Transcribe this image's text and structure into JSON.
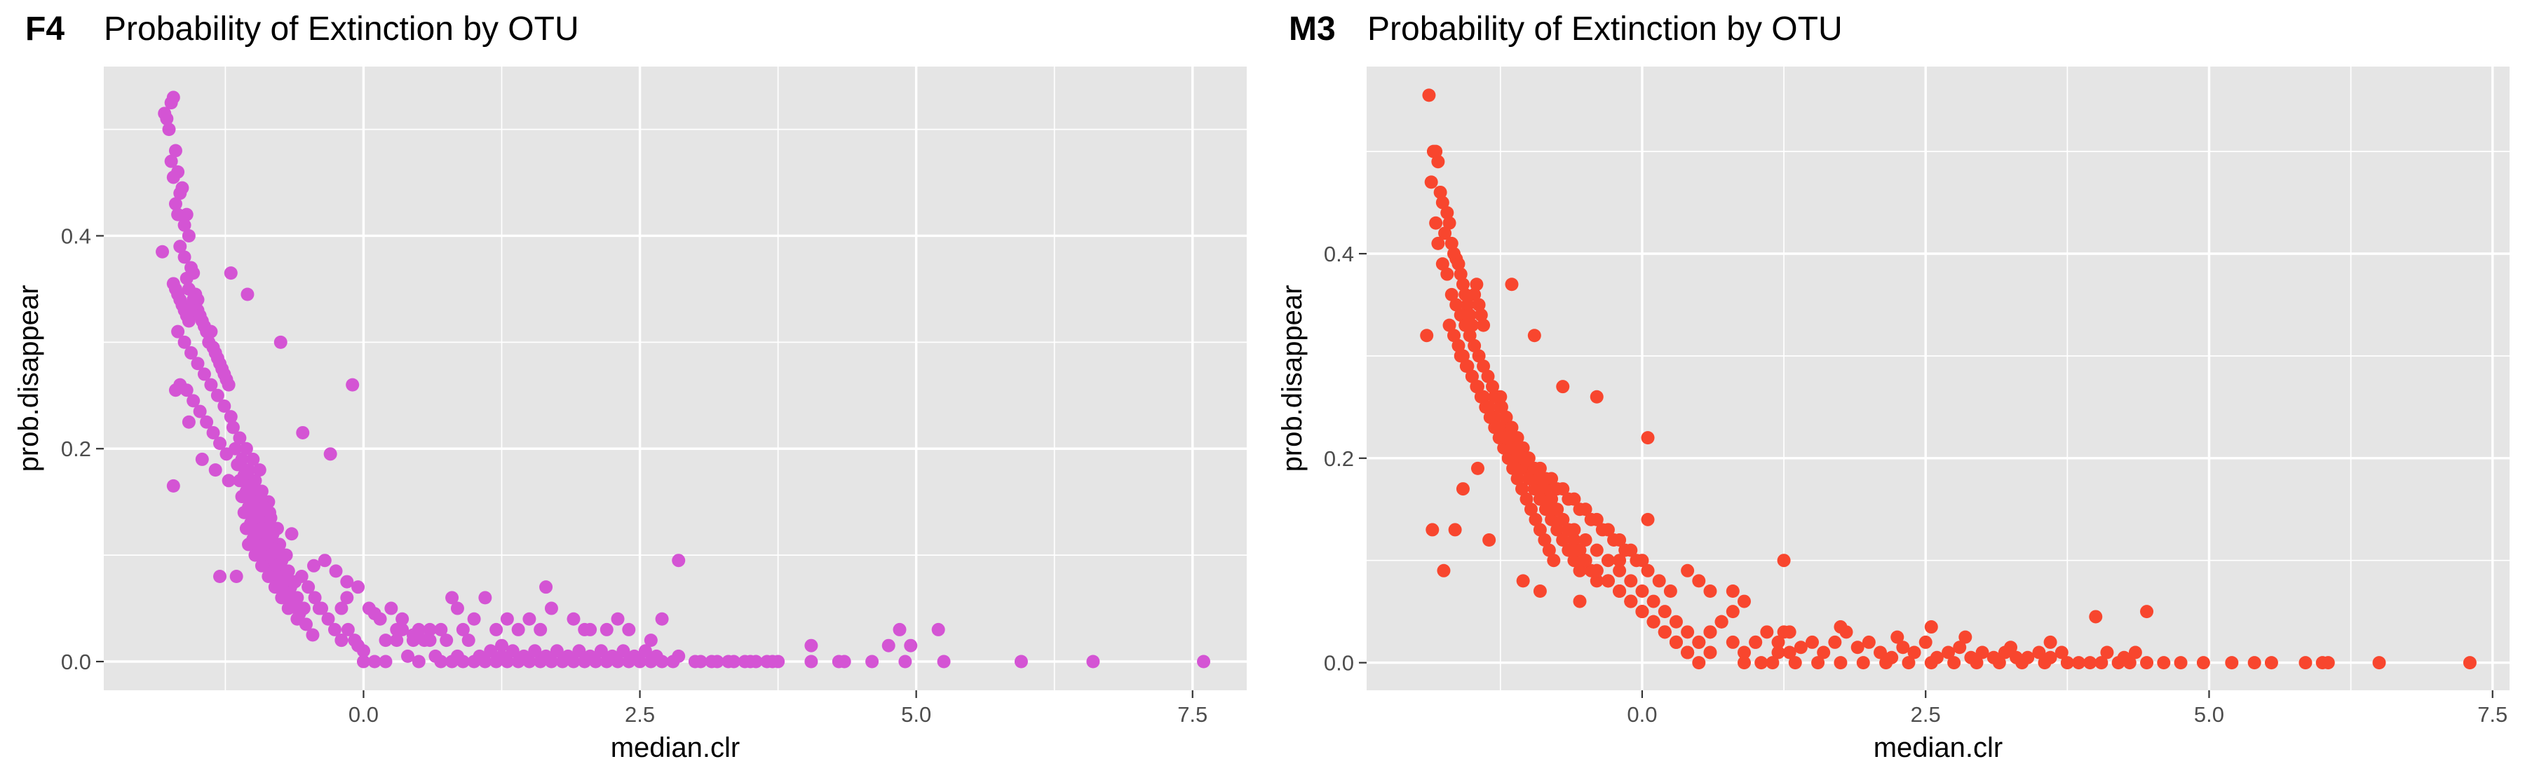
{
  "chart_data": [
    {
      "type": "scatter",
      "tag": "F4",
      "title": "Probability of Extinction by OTU",
      "xlabel": "median.clr",
      "ylabel": "prob.disappear",
      "xlim": [
        -2.35,
        7.99
      ],
      "ylim": [
        -0.027,
        0.559
      ],
      "xticks": [
        0.0,
        2.5,
        5.0,
        7.5
      ],
      "xtick_labels": [
        "0.0",
        "2.5",
        "5.0",
        "7.5"
      ],
      "yticks": [
        0.0,
        0.2,
        0.4
      ],
      "ytick_labels": [
        "0.0",
        "0.2",
        "0.4"
      ],
      "grid": true,
      "point_color": "#D454D4",
      "x": [
        -1.8,
        -1.78,
        -1.74,
        -1.72,
        -1.76,
        -1.7,
        -1.74,
        -1.68,
        -1.72,
        -1.66,
        -1.7,
        -1.64,
        -1.68,
        -1.62,
        -1.6,
        -1.66,
        -1.58,
        -1.62,
        -1.56,
        -1.6,
        -1.54,
        -1.58,
        -1.52,
        -1.5,
        -1.56,
        -1.72,
        -1.7,
        -1.68,
        -1.66,
        -1.64,
        -1.62,
        -1.6,
        -1.58,
        -1.56,
        -1.54,
        -1.52,
        -1.5,
        -1.48,
        -1.46,
        -1.44,
        -1.42,
        -1.4,
        -1.38,
        -1.36,
        -1.34,
        -1.32,
        -1.3,
        -1.28,
        -1.26,
        -1.24,
        -1.22,
        -1.68,
        -1.62,
        -1.56,
        -1.5,
        -1.44,
        -1.38,
        -1.32,
        -1.26,
        -1.2,
        -1.66,
        -1.6,
        -1.54,
        -1.48,
        -1.42,
        -1.36,
        -1.3,
        -1.24,
        -1.82,
        -1.7,
        -1.58,
        -1.46,
        -1.34,
        -1.22,
        -1.72,
        -1.18,
        -1.12,
        -1.06,
        -1.0,
        -0.94,
        -1.16,
        -1.1,
        -1.04,
        -0.98,
        -0.92,
        -0.86,
        -1.14,
        -1.08,
        -1.02,
        -0.96,
        -0.9,
        -0.84,
        -0.78,
        -1.12,
        -1.06,
        -1.0,
        -0.94,
        -0.88,
        -0.82,
        -0.76,
        -0.7,
        -1.1,
        -1.04,
        -0.98,
        -0.92,
        -0.86,
        -0.8,
        -0.74,
        -0.68,
        -0.62,
        -1.08,
        -1.02,
        -0.96,
        -0.9,
        -0.84,
        -0.78,
        -0.72,
        -0.66,
        -0.6,
        -0.54,
        -1.06,
        -1.0,
        -0.94,
        -0.88,
        -0.82,
        -0.76,
        -0.7,
        -0.64,
        -0.58,
        -0.52,
        -0.46,
        -1.04,
        -0.98,
        -0.92,
        -0.86,
        -0.8,
        -0.74,
        -0.68,
        -0.62,
        -0.56,
        -0.5,
        -0.44,
        -0.38,
        -0.32,
        -0.26,
        -0.2,
        -0.14,
        -0.08,
        -1.2,
        -1.05,
        -0.75,
        -0.55,
        -0.3,
        -0.1,
        -1.3,
        -1.15,
        -0.95,
        -0.85,
        -0.65,
        -0.45,
        -0.35,
        -0.25,
        -0.15,
        -0.05,
        -0.6,
        -0.4,
        -0.2,
        -0.15,
        0.05,
        0.1,
        0.15,
        0.25,
        0.35,
        -0.2,
        -0.05,
        0.0,
        0.2,
        0.3,
        0.45,
        0.6,
        0.5,
        0.7,
        0.8,
        0.9,
        1.0,
        1.1,
        1.2,
        1.3,
        1.4,
        1.5,
        1.6,
        1.7,
        1.8,
        1.9,
        2.0,
        2.1,
        2.2,
        2.3,
        2.4,
        2.5,
        2.6,
        2.7,
        0.3,
        0.55,
        0.75,
        0.95,
        1.15,
        1.35,
        1.55,
        1.75,
        1.95,
        2.15,
        2.35,
        2.55,
        0.4,
        0.65,
        0.85,
        1.05,
        1.25,
        1.45,
        1.65,
        1.85,
        2.05,
        2.25,
        2.45,
        2.65,
        2.85,
        0.0,
        0.1,
        0.2,
        0.35,
        0.5,
        0.6,
        0.7,
        0.9,
        1.2,
        1.4,
        1.6,
        2.0,
        2.2,
        2.4,
        2.8,
        1.0,
        1.3,
        1.5,
        1.9,
        2.3,
        2.6,
        0.8,
        1.1,
        1.7,
        2.7,
        1.25,
        2.05,
        0.45,
        0.85,
        1.65,
        2.85,
        3.05,
        3.2,
        3.35,
        3.45,
        3.55,
        3.65,
        3.75,
        3.0,
        3.15,
        3.3,
        3.5,
        3.7,
        4.05,
        4.3,
        4.6,
        4.75,
        4.85,
        4.95,
        4.9,
        5.2,
        5.25,
        4.05,
        4.35,
        5.95,
        6.6,
        7.6
      ],
      "y": [
        0.515,
        0.51,
        0.525,
        0.53,
        0.5,
        0.48,
        0.47,
        0.46,
        0.455,
        0.44,
        0.43,
        0.445,
        0.42,
        0.41,
        0.42,
        0.39,
        0.4,
        0.38,
        0.37,
        0.36,
        0.365,
        0.35,
        0.345,
        0.34,
        0.33,
        0.355,
        0.35,
        0.345,
        0.34,
        0.335,
        0.33,
        0.325,
        0.32,
        0.33,
        0.34,
        0.335,
        0.33,
        0.325,
        0.32,
        0.315,
        0.31,
        0.3,
        0.31,
        0.295,
        0.29,
        0.285,
        0.28,
        0.275,
        0.27,
        0.265,
        0.26,
        0.31,
        0.3,
        0.29,
        0.28,
        0.27,
        0.26,
        0.25,
        0.24,
        0.23,
        0.26,
        0.255,
        0.245,
        0.235,
        0.225,
        0.215,
        0.205,
        0.195,
        0.385,
        0.255,
        0.225,
        0.19,
        0.18,
        0.17,
        0.165,
        0.22,
        0.21,
        0.2,
        0.19,
        0.18,
        0.2,
        0.19,
        0.18,
        0.17,
        0.16,
        0.15,
        0.185,
        0.175,
        0.165,
        0.155,
        0.145,
        0.135,
        0.125,
        0.17,
        0.16,
        0.15,
        0.14,
        0.13,
        0.12,
        0.11,
        0.1,
        0.155,
        0.145,
        0.135,
        0.125,
        0.115,
        0.105,
        0.095,
        0.085,
        0.075,
        0.14,
        0.13,
        0.12,
        0.11,
        0.1,
        0.09,
        0.08,
        0.07,
        0.06,
        0.05,
        0.125,
        0.115,
        0.105,
        0.095,
        0.085,
        0.075,
        0.065,
        0.055,
        0.045,
        0.035,
        0.025,
        0.11,
        0.1,
        0.09,
        0.08,
        0.07,
        0.06,
        0.05,
        0.06,
        0.08,
        0.07,
        0.06,
        0.05,
        0.04,
        0.03,
        0.02,
        0.03,
        0.02,
        0.365,
        0.345,
        0.3,
        0.215,
        0.195,
        0.26,
        0.08,
        0.08,
        0.1,
        0.14,
        0.12,
        0.09,
        0.095,
        0.085,
        0.075,
        0.07,
        0.04,
        0.05,
        0.05,
        0.06,
        0.05,
        0.045,
        0.04,
        0.05,
        0.04,
        0.02,
        0.015,
        0.01,
        0.02,
        0.03,
        0.02,
        0.02,
        0.0,
        0.0,
        0.0,
        0.0,
        0.0,
        0.0,
        0.0,
        0.0,
        0.0,
        0.0,
        0.0,
        0.0,
        0.0,
        0.0,
        0.0,
        0.0,
        0.0,
        0.0,
        0.0,
        0.0,
        0.0,
        0.0,
        0.02,
        0.02,
        0.02,
        0.02,
        0.01,
        0.01,
        0.01,
        0.01,
        0.01,
        0.01,
        0.01,
        0.01,
        0.005,
        0.005,
        0.005,
        0.005,
        0.005,
        0.005,
        0.005,
        0.005,
        0.005,
        0.005,
        0.005,
        0.005,
        0.005,
        0.0,
        0.0,
        0.0,
        0.03,
        0.03,
        0.03,
        0.03,
        0.03,
        0.03,
        0.03,
        0.03,
        0.03,
        0.03,
        0.03,
        0.0,
        0.04,
        0.04,
        0.04,
        0.04,
        0.04,
        0.02,
        0.06,
        0.06,
        0.05,
        0.04,
        0.015,
        0.03,
        0.025,
        0.05,
        0.07,
        0.095,
        0.0,
        0.0,
        0.0,
        0.0,
        0.0,
        0.0,
        0.0,
        0.0,
        0.0,
        0.0,
        0.0,
        0.0,
        0.0,
        0.0,
        0.0,
        0.015,
        0.03,
        0.015,
        0.0,
        0.03,
        0.0,
        0.015,
        0.0,
        0.0,
        0.0,
        0.0
      ]
    },
    {
      "type": "scatter",
      "tag": "M3",
      "title": "Probability of Extinction by OTU",
      "xlabel": "median.clr",
      "ylabel": "prob.disappear",
      "xlim": [
        -2.43,
        7.65
      ],
      "ylim": [
        -0.027,
        0.583
      ],
      "xticks": [
        0.0,
        2.5,
        5.0,
        7.5
      ],
      "xtick_labels": [
        "0.0",
        "2.5",
        "5.0",
        "7.5"
      ],
      "yticks": [
        0.0,
        0.2,
        0.4
      ],
      "ytick_labels": [
        "0.0",
        "0.2",
        "0.4"
      ],
      "grid": true,
      "point_color": "#F8462E",
      "x": [
        -1.88,
        -1.82,
        -1.84,
        -1.8,
        -1.86,
        -1.78,
        -1.76,
        -1.72,
        -1.7,
        -1.74,
        -1.68,
        -1.66,
        -1.64,
        -1.62,
        -1.6,
        -1.58,
        -1.56,
        -1.54,
        -1.52,
        -1.5,
        -1.48,
        -1.46,
        -1.44,
        -1.42,
        -1.4,
        -1.8,
        -1.76,
        -1.72,
        -1.68,
        -1.64,
        -1.6,
        -1.56,
        -1.52,
        -1.48,
        -1.44,
        -1.4,
        -1.36,
        -1.32,
        -1.28,
        -1.24,
        -1.2,
        -1.16,
        -1.12,
        -1.08,
        -1.04,
        -1.0,
        -0.96,
        -0.92,
        -0.88,
        -1.7,
        -1.66,
        -1.62,
        -1.58,
        -1.54,
        -1.5,
        -1.46,
        -1.42,
        -1.38,
        -1.34,
        -1.3,
        -1.26,
        -1.22,
        -1.18,
        -1.14,
        -1.1,
        -1.06,
        -1.02,
        -0.98,
        -0.94,
        -0.9,
        -0.86,
        -0.82,
        -0.78,
        -1.6,
        -1.55,
        -1.5,
        -1.45,
        -1.4,
        -1.35,
        -1.3,
        -1.25,
        -1.2,
        -1.15,
        -1.1,
        -1.05,
        -1.0,
        -0.95,
        -0.9,
        -0.85,
        -0.8,
        -0.75,
        -0.7,
        -0.65,
        -0.6,
        -0.55,
        -1.3,
        -1.25,
        -1.2,
        -1.15,
        -1.1,
        -1.05,
        -1.0,
        -0.95,
        -0.9,
        -0.85,
        -0.8,
        -0.75,
        -0.7,
        -0.65,
        -0.6,
        -0.55,
        -0.5,
        -0.45,
        -0.4,
        -1.2,
        -1.1,
        -1.0,
        -0.9,
        -0.8,
        -0.7,
        -0.6,
        -0.5,
        -0.4,
        -0.3,
        -0.2,
        -0.1,
        0.0,
        -1.05,
        -0.95,
        -0.85,
        -0.75,
        -0.65,
        -0.55,
        -0.45,
        -0.35,
        -0.25,
        -0.15,
        -0.05,
        0.05,
        0.15,
        0.25,
        -0.9,
        -0.8,
        -0.7,
        -0.6,
        -0.5,
        -0.4,
        -0.3,
        -0.2,
        -0.1,
        0.0,
        0.1,
        0.2,
        0.3,
        0.4,
        -0.7,
        -0.6,
        -0.5,
        -0.4,
        -0.3,
        -0.2,
        -0.1,
        0.0,
        0.1,
        0.2,
        0.3,
        0.4,
        0.5,
        0.6,
        -0.5,
        -0.4,
        -0.3,
        -0.2,
        -0.1,
        0.0,
        0.1,
        0.2,
        0.3,
        0.4,
        0.5,
        0.6,
        0.7,
        0.8,
        -0.3,
        -0.2,
        -0.1,
        0.0,
        0.1,
        0.2,
        0.3,
        0.4,
        0.5,
        0.6,
        0.7,
        0.8,
        0.9,
        1.0,
        -1.85,
        -1.75,
        -1.65,
        -1.58,
        -1.9,
        -1.82,
        -1.25,
        -1.15,
        -0.95,
        -0.7,
        -0.4,
        0.05,
        0.05,
        -1.05,
        -1.45,
        -1.35,
        -0.9,
        -0.55,
        -0.2,
        0.4,
        1.25,
        1.3,
        0.9,
        0.6,
        0.5,
        0.8,
        1.2,
        1.0,
        1.1,
        1.2,
        1.3,
        1.4,
        1.5,
        1.6,
        1.7,
        1.8,
        1.9,
        2.0,
        2.1,
        2.2,
        2.3,
        2.4,
        2.5,
        2.6,
        2.7,
        2.8,
        2.9,
        3.0,
        3.1,
        3.2,
        3.3,
        3.4,
        3.5,
        3.6,
        3.7,
        0.9,
        1.05,
        1.15,
        1.35,
        1.55,
        1.75,
        1.95,
        2.15,
        2.35,
        2.55,
        2.75,
        2.95,
        3.15,
        3.35,
        3.55,
        3.75,
        3.85,
        3.95,
        4.05,
        4.2,
        4.3,
        4.45,
        4.6,
        4.75,
        4.95,
        5.2,
        5.4,
        5.55,
        5.85,
        6.0,
        6.05,
        6.5,
        7.3,
        0.7,
        1.25,
        1.75,
        2.25,
        2.55,
        2.85,
        3.25,
        3.6,
        4.1,
        4.35,
        4.0,
        4.25,
        4.45
      ],
      "y": [
        0.555,
        0.5,
        0.5,
        0.49,
        0.47,
        0.46,
        0.45,
        0.44,
        0.43,
        0.42,
        0.41,
        0.4,
        0.395,
        0.39,
        0.38,
        0.37,
        0.36,
        0.35,
        0.34,
        0.33,
        0.36,
        0.37,
        0.35,
        0.34,
        0.33,
        0.41,
        0.39,
        0.38,
        0.36,
        0.35,
        0.34,
        0.33,
        0.32,
        0.31,
        0.3,
        0.29,
        0.28,
        0.27,
        0.26,
        0.25,
        0.24,
        0.23,
        0.22,
        0.21,
        0.2,
        0.19,
        0.18,
        0.17,
        0.16,
        0.33,
        0.32,
        0.31,
        0.3,
        0.29,
        0.28,
        0.27,
        0.26,
        0.25,
        0.24,
        0.23,
        0.22,
        0.21,
        0.2,
        0.19,
        0.18,
        0.17,
        0.16,
        0.15,
        0.14,
        0.13,
        0.12,
        0.11,
        0.1,
        0.3,
        0.29,
        0.28,
        0.27,
        0.26,
        0.25,
        0.24,
        0.23,
        0.22,
        0.21,
        0.2,
        0.19,
        0.18,
        0.17,
        0.16,
        0.15,
        0.14,
        0.13,
        0.12,
        0.11,
        0.1,
        0.09,
        0.26,
        0.25,
        0.24,
        0.23,
        0.22,
        0.21,
        0.2,
        0.19,
        0.18,
        0.17,
        0.16,
        0.15,
        0.14,
        0.13,
        0.12,
        0.11,
        0.1,
        0.09,
        0.08,
        0.22,
        0.21,
        0.2,
        0.19,
        0.18,
        0.17,
        0.16,
        0.15,
        0.14,
        0.13,
        0.12,
        0.11,
        0.1,
        0.2,
        0.19,
        0.18,
        0.17,
        0.16,
        0.15,
        0.14,
        0.13,
        0.12,
        0.11,
        0.1,
        0.09,
        0.08,
        0.07,
        0.16,
        0.15,
        0.14,
        0.13,
        0.12,
        0.11,
        0.1,
        0.09,
        0.08,
        0.07,
        0.06,
        0.05,
        0.04,
        0.03,
        0.12,
        0.11,
        0.1,
        0.09,
        0.08,
        0.07,
        0.06,
        0.05,
        0.04,
        0.03,
        0.02,
        0.01,
        0.0,
        0.01,
        0.1,
        0.09,
        0.08,
        0.07,
        0.06,
        0.05,
        0.04,
        0.03,
        0.02,
        0.01,
        0.02,
        0.03,
        0.04,
        0.05,
        0.08,
        0.07,
        0.06,
        0.05,
        0.04,
        0.03,
        0.02,
        0.01,
        0.02,
        0.03,
        0.04,
        0.02,
        0.01,
        0.02,
        0.13,
        0.09,
        0.13,
        0.17,
        0.32,
        0.43,
        0.26,
        0.37,
        0.32,
        0.27,
        0.26,
        0.22,
        0.14,
        0.08,
        0.19,
        0.12,
        0.07,
        0.06,
        0.1,
        0.09,
        0.1,
        0.03,
        0.06,
        0.07,
        0.08,
        0.07,
        0.01,
        0.02,
        0.03,
        0.02,
        0.01,
        0.015,
        0.02,
        0.01,
        0.02,
        0.03,
        0.015,
        0.02,
        0.01,
        0.005,
        0.015,
        0.01,
        0.02,
        0.005,
        0.01,
        0.015,
        0.005,
        0.01,
        0.005,
        0.01,
        0.005,
        0.005,
        0.01,
        0.005,
        0.01,
        0.0,
        0.0,
        0.0,
        0.0,
        0.0,
        0.0,
        0.0,
        0.0,
        0.0,
        0.0,
        0.0,
        0.0,
        0.0,
        0.0,
        0.0,
        0.0,
        0.0,
        0.0,
        0.0,
        0.0,
        0.0,
        0.0,
        0.0,
        0.0,
        0.0,
        0.0,
        0.0,
        0.0,
        0.0,
        0.0,
        0.0,
        0.0,
        0.0,
        0.04,
        0.03,
        0.035,
        0.025,
        0.035,
        0.025,
        0.015,
        0.02,
        0.01,
        0.01,
        0.045,
        0.005,
        0.05
      ]
    }
  ]
}
